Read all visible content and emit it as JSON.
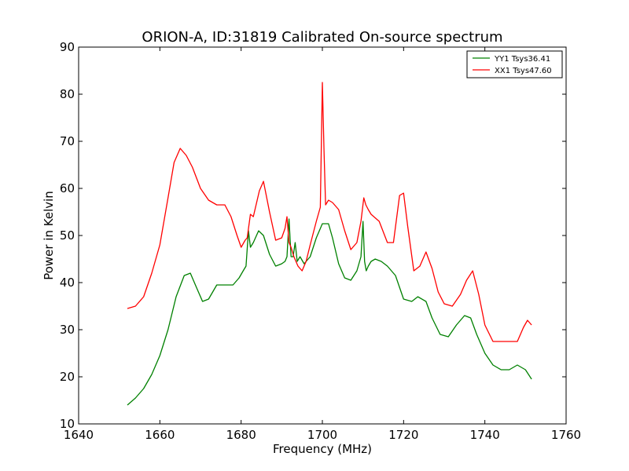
{
  "chart_data": {
    "type": "line",
    "title": "ORION-A, ID:31819 Calibrated On-source spectrum",
    "xlabel": "Frequency (MHz)",
    "ylabel": "Power in Kelvin",
    "xlim": [
      1640,
      1760
    ],
    "ylim": [
      10,
      90
    ],
    "xticks": [
      "1640",
      "1660",
      "1680",
      "1700",
      "1720",
      "1740",
      "1760"
    ],
    "yticks": [
      "10",
      "20",
      "30",
      "40",
      "50",
      "60",
      "70",
      "80",
      "90"
    ],
    "grid": false,
    "legend_placement": "top-right",
    "series": [
      {
        "name": "YY1 Tsys36.41",
        "color": "#008000",
        "x": [
          1652,
          1654,
          1656,
          1658,
          1660,
          1662,
          1664,
          1666,
          1667.5,
          1669,
          1670.5,
          1672,
          1674,
          1676,
          1678,
          1679.5,
          1680.5,
          1681.2,
          1681.8,
          1682.3,
          1683,
          1684.3,
          1685.5,
          1687,
          1688.5,
          1690,
          1690.8,
          1691.3,
          1691.8,
          1692.3,
          1692.8,
          1693.3,
          1693.8,
          1694.5,
          1695.5,
          1697,
          1698.5,
          1700,
          1701.5,
          1702.5,
          1704,
          1705.5,
          1707,
          1708.5,
          1709.5,
          1710,
          1710.4,
          1710.8,
          1711.3,
          1712,
          1713,
          1714.5,
          1716,
          1718,
          1720,
          1722,
          1723.5,
          1725.5,
          1727,
          1729,
          1731,
          1733,
          1735,
          1736.5,
          1738,
          1740,
          1742,
          1744,
          1746,
          1748,
          1750,
          1751.5
        ],
        "y": [
          14,
          15.5,
          17.5,
          20.5,
          24.5,
          30,
          37,
          41.5,
          42,
          39,
          36,
          36.5,
          39.5,
          39.5,
          39.5,
          41,
          42.5,
          43.5,
          51,
          47.5,
          48.5,
          51,
          50,
          46,
          43.5,
          44,
          44.5,
          45.5,
          53.5,
          45.5,
          45.5,
          48.5,
          44.5,
          45.5,
          44,
          45.5,
          49.5,
          52.5,
          52.5,
          49.5,
          44,
          41,
          40.5,
          42.5,
          45.5,
          53,
          44.5,
          42.5,
          43.5,
          44.5,
          45,
          44.5,
          43.5,
          41.5,
          36.5,
          36,
          37,
          36,
          32.5,
          29,
          28.5,
          31,
          33,
          32.5,
          29,
          25,
          22.5,
          21.5,
          21.5,
          22.5,
          21.5,
          19.5
        ]
      },
      {
        "name": "XX1 Tsys47.60",
        "color": "#ff0000",
        "x": [
          1652,
          1654,
          1656,
          1658,
          1660,
          1662,
          1663.5,
          1665,
          1666.5,
          1668,
          1670,
          1672,
          1674,
          1676,
          1677.5,
          1679,
          1680,
          1681,
          1681.5,
          1682.3,
          1683,
          1684.5,
          1685.5,
          1687,
          1688.5,
          1690,
          1690.8,
          1691.3,
          1691.8,
          1692.3,
          1693,
          1694,
          1695,
          1696,
          1697,
          1698.5,
          1699.5,
          1700,
          1700.4,
          1700.8,
          1701.5,
          1702.5,
          1704,
          1705.5,
          1707,
          1708.5,
          1709.5,
          1710.2,
          1710.7,
          1711.3,
          1712,
          1714,
          1716,
          1717.5,
          1719,
          1720,
          1721,
          1722.5,
          1724,
          1725.5,
          1727,
          1728.5,
          1730,
          1732,
          1734,
          1735.5,
          1737,
          1738.5,
          1740,
          1742,
          1744,
          1746,
          1748,
          1749.5,
          1750.5,
          1751.5
        ],
        "y": [
          34.5,
          35,
          37,
          42,
          48,
          58,
          65.5,
          68.5,
          67,
          64.5,
          60,
          57.5,
          56.5,
          56.5,
          54,
          50,
          47.5,
          49,
          49.5,
          54.5,
          54,
          59.5,
          61.5,
          55,
          49,
          49.5,
          51.5,
          54,
          48.5,
          47.5,
          45.5,
          43.5,
          42.5,
          44.5,
          48,
          53,
          56,
          82.5,
          68,
          56.5,
          57.5,
          57,
          55.5,
          51,
          47,
          48.5,
          53,
          58,
          56.5,
          55.5,
          54.5,
          53,
          48.5,
          48.5,
          58.5,
          59,
          52,
          42.5,
          43.5,
          46.5,
          43,
          38,
          35.5,
          35,
          37.5,
          40.5,
          42.5,
          37.5,
          31,
          27.5,
          27.5,
          27.5,
          27.5,
          30.5,
          32,
          31
        ]
      }
    ]
  }
}
